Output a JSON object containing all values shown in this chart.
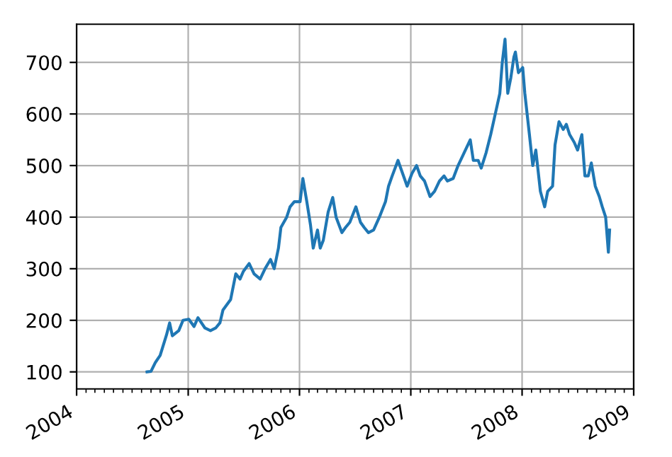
{
  "chart_data": {
    "type": "line",
    "color": "#1f77b4",
    "grid": true,
    "marker": "none",
    "line_style": "solid",
    "x": [
      "2004-08-19",
      "2004-09-01",
      "2004-09-15",
      "2004-10-01",
      "2004-10-22",
      "2004-11-01",
      "2004-11-10",
      "2004-12-01",
      "2004-12-15",
      "2005-01-03",
      "2005-01-20",
      "2005-02-02",
      "2005-02-25",
      "2005-03-15",
      "2005-04-01",
      "2005-04-15",
      "2005-04-25",
      "2005-05-20",
      "2005-06-06",
      "2005-06-20",
      "2005-07-01",
      "2005-07-20",
      "2005-08-05",
      "2005-08-25",
      "2005-09-10",
      "2005-09-28",
      "2005-10-10",
      "2005-10-24",
      "2005-11-01",
      "2005-11-20",
      "2005-12-01",
      "2005-12-15",
      "2006-01-03",
      "2006-01-12",
      "2006-01-25",
      "2006-02-06",
      "2006-02-15",
      "2006-03-01",
      "2006-03-10",
      "2006-03-20",
      "2006-04-05",
      "2006-04-20",
      "2006-05-01",
      "2006-05-20",
      "2006-06-01",
      "2006-06-15",
      "2006-07-05",
      "2006-07-20",
      "2006-08-01",
      "2006-08-15",
      "2006-09-01",
      "2006-09-20",
      "2006-10-10",
      "2006-10-20",
      "2006-11-01",
      "2006-11-20",
      "2006-12-05",
      "2006-12-20",
      "2007-01-05",
      "2007-01-20",
      "2007-02-01",
      "2007-02-15",
      "2007-03-05",
      "2007-03-20",
      "2007-04-05",
      "2007-04-20",
      "2007-05-01",
      "2007-05-20",
      "2007-06-05",
      "2007-06-25",
      "2007-07-15",
      "2007-07-25",
      "2007-08-10",
      "2007-08-20",
      "2007-09-05",
      "2007-09-20",
      "2007-10-05",
      "2007-10-20",
      "2007-10-28",
      "2007-11-06",
      "2007-11-15",
      "2007-11-25",
      "2007-12-05",
      "2007-12-10",
      "2007-12-20",
      "2008-01-03",
      "2008-01-10",
      "2008-01-25",
      "2008-02-05",
      "2008-02-15",
      "2008-03-01",
      "2008-03-15",
      "2008-03-25",
      "2008-04-10",
      "2008-04-18",
      "2008-05-01",
      "2008-05-15",
      "2008-05-25",
      "2008-06-05",
      "2008-06-20",
      "2008-07-01",
      "2008-07-15",
      "2008-07-25",
      "2008-08-05",
      "2008-08-15",
      "2008-08-28",
      "2008-09-10",
      "2008-09-20",
      "2008-10-01",
      "2008-10-10",
      "2008-10-14"
    ],
    "values": [
      100,
      101,
      118,
      132,
      172,
      195,
      170,
      180,
      200,
      202,
      188,
      205,
      185,
      180,
      185,
      195,
      220,
      240,
      290,
      280,
      295,
      310,
      290,
      280,
      300,
      318,
      300,
      340,
      380,
      400,
      420,
      430,
      430,
      475,
      430,
      385,
      340,
      375,
      340,
      355,
      410,
      438,
      400,
      370,
      380,
      390,
      420,
      390,
      380,
      370,
      375,
      400,
      430,
      460,
      480,
      510,
      485,
      460,
      485,
      500,
      480,
      470,
      440,
      450,
      470,
      480,
      470,
      475,
      500,
      525,
      550,
      510,
      510,
      495,
      525,
      560,
      600,
      640,
      700,
      745,
      640,
      670,
      710,
      720,
      680,
      690,
      640,
      560,
      500,
      530,
      450,
      420,
      450,
      460,
      540,
      585,
      570,
      580,
      560,
      545,
      530,
      560,
      480,
      480,
      505,
      460,
      440,
      420,
      400,
      332,
      375
    ],
    "xlim": [
      "2004-01-01",
      "2009-01-01"
    ],
    "xticks": [
      {
        "value": "2004-01-01",
        "label": "2004"
      },
      {
        "value": "2005-01-01",
        "label": "2005"
      },
      {
        "value": "2006-01-01",
        "label": "2006"
      },
      {
        "value": "2007-01-01",
        "label": "2007"
      },
      {
        "value": "2008-01-01",
        "label": "2008"
      },
      {
        "value": "2009-01-01",
        "label": "2009"
      }
    ],
    "ylim": [
      67,
      774
    ],
    "yticks": [
      100,
      200,
      300,
      400,
      500,
      600,
      700
    ]
  }
}
